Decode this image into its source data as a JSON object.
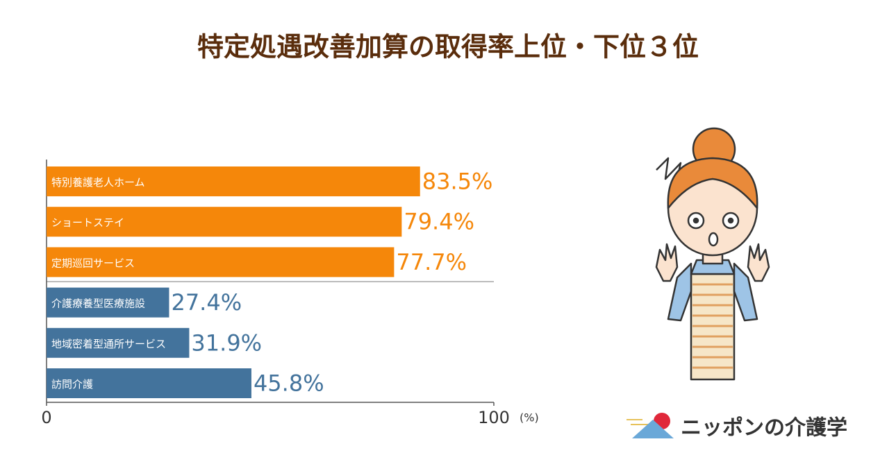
{
  "chart_data": {
    "type": "bar",
    "orientation": "horizontal",
    "title": "特定処遇改善加算の取得率上位・下位３位",
    "categories": [
      "特別養護老人ホーム",
      "ショートステイ",
      "定期巡回サービス",
      "介護療養型医療施設",
      "地域密着型通所サービス",
      "訪問介護"
    ],
    "values": [
      83.5,
      79.4,
      77.7,
      27.4,
      31.9,
      45.8
    ],
    "value_labels": [
      "83.5%",
      "79.4%",
      "77.7%",
      "27.4%",
      "31.9%",
      "45.8%"
    ],
    "colors": [
      "#f5870a",
      "#f5870a",
      "#f5870a",
      "#43739c",
      "#43739c",
      "#43739c"
    ],
    "xlim": [
      0,
      100
    ],
    "xticks": [
      0,
      100
    ],
    "x_label": "(%)"
  },
  "logo": {
    "text": "ニッポンの介護学"
  }
}
